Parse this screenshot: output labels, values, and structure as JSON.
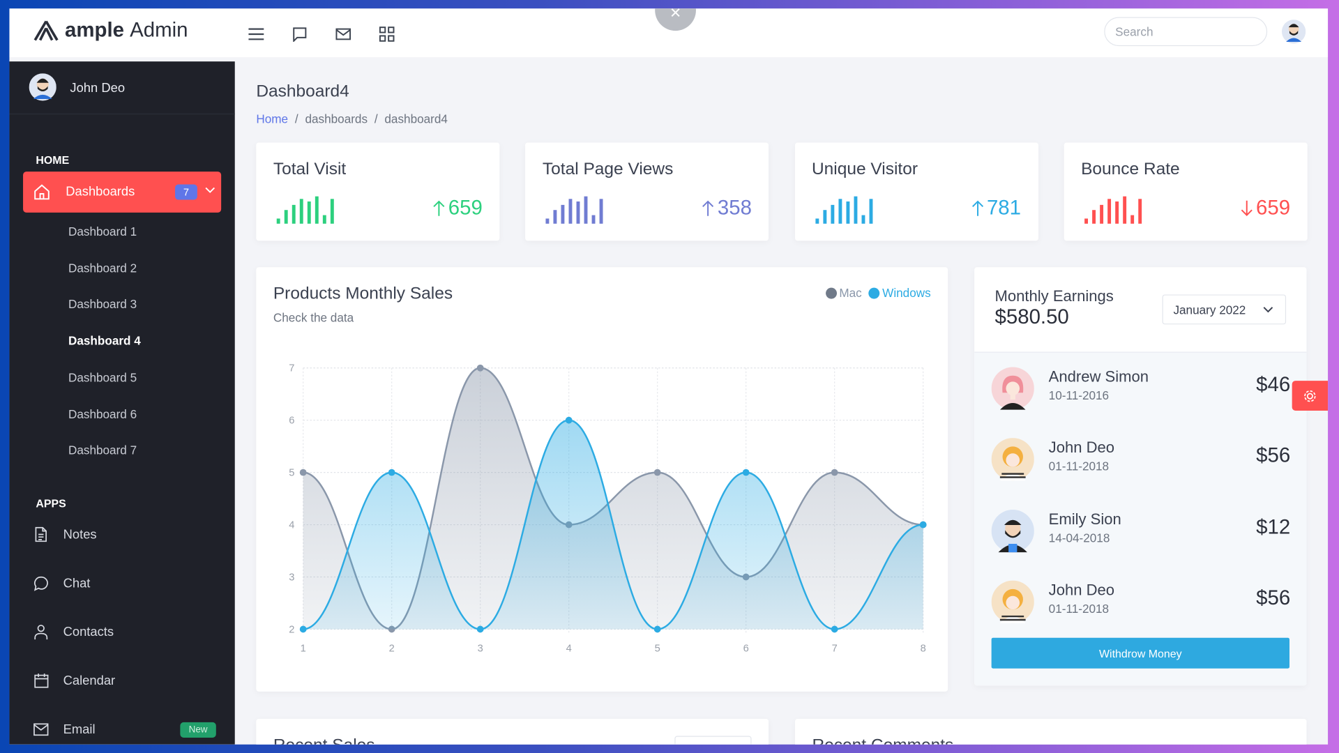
{
  "header": {
    "logo_bold": "ample",
    "logo_light": "Admin",
    "search_placeholder": "Search",
    "close_label": "×",
    "icons": [
      "menu-icon",
      "chat-icon",
      "mail-icon",
      "grid-icon"
    ]
  },
  "sidebar": {
    "user": "John Deo",
    "home_label": "HOME",
    "active": {
      "label": "Dashboards",
      "badge": "7"
    },
    "sub_items": [
      "Dashboard 1",
      "Dashboard 2",
      "Dashboard 3",
      "Dashboard 4",
      "Dashboard 5",
      "Dashboard 6",
      "Dashboard 7"
    ],
    "apps_label": "APPS",
    "apps": [
      {
        "label": "Notes",
        "icon": "notes-icon"
      },
      {
        "label": "Chat",
        "icon": "chat-icon"
      },
      {
        "label": "Contacts",
        "icon": "user-icon"
      },
      {
        "label": "Calendar",
        "icon": "calendar-icon"
      },
      {
        "label": "Email",
        "icon": "mail-icon",
        "badge": "New"
      }
    ]
  },
  "page": {
    "title": "Dashboard4",
    "breadcrumb": [
      "Home",
      "dashboards",
      "dashboard4"
    ]
  },
  "stats": [
    {
      "title": "Total Visit",
      "value": "659",
      "trend": "up",
      "color": "#2cd07e",
      "spark": [
        2,
        5,
        7,
        9,
        8,
        10,
        3,
        9
      ]
    },
    {
      "title": "Total Page Views",
      "value": "358",
      "trend": "up",
      "color": "#707cd2",
      "spark": [
        2,
        5,
        7,
        9,
        8,
        10,
        3,
        9
      ]
    },
    {
      "title": "Unique Visitor",
      "value": "781",
      "trend": "up",
      "color": "#2cabe3",
      "spark": [
        2,
        5,
        7,
        9,
        8,
        10,
        3,
        9
      ]
    },
    {
      "title": "Bounce Rate",
      "value": "659",
      "trend": "down",
      "color": "#ff5050",
      "spark": [
        2,
        5,
        7,
        9,
        8,
        10,
        3,
        9
      ]
    }
  ],
  "chart_data": {
    "type": "area",
    "title": "Products Monthly Sales",
    "subtitle": "Check the data",
    "x": [
      1,
      2,
      3,
      4,
      5,
      6,
      7,
      8
    ],
    "ylim": [
      2,
      7
    ],
    "yticks": [
      2,
      3,
      4,
      5,
      6,
      7
    ],
    "grid": true,
    "legend": "top-right",
    "series": [
      {
        "name": "Mac",
        "color": "#8a97aa",
        "values": [
          5,
          2,
          7,
          4,
          5,
          3,
          5,
          4
        ]
      },
      {
        "name": "Windows",
        "color": "#2cabe3",
        "values": [
          2,
          5,
          2,
          6,
          2,
          5,
          2,
          4
        ]
      }
    ]
  },
  "earnings": {
    "title": "Monthly Earnings",
    "amount": "$580.50",
    "period": "January 2022",
    "rows": [
      {
        "name": "Andrew Simon",
        "date": "10-11-2016",
        "amount": "$46",
        "avatar": "female"
      },
      {
        "name": "John Deo",
        "date": "01-11-2018",
        "amount": "$56",
        "avatar": "curly"
      },
      {
        "name": "Emily Sion",
        "date": "14-04-2018",
        "amount": "$12",
        "avatar": "beard"
      },
      {
        "name": "John Deo",
        "date": "01-11-2018",
        "amount": "$56",
        "avatar": "curly"
      }
    ],
    "button": "Withdrow Money"
  },
  "bottom": {
    "left_title": "Recent Sales",
    "right_title": "Recent Comments"
  }
}
